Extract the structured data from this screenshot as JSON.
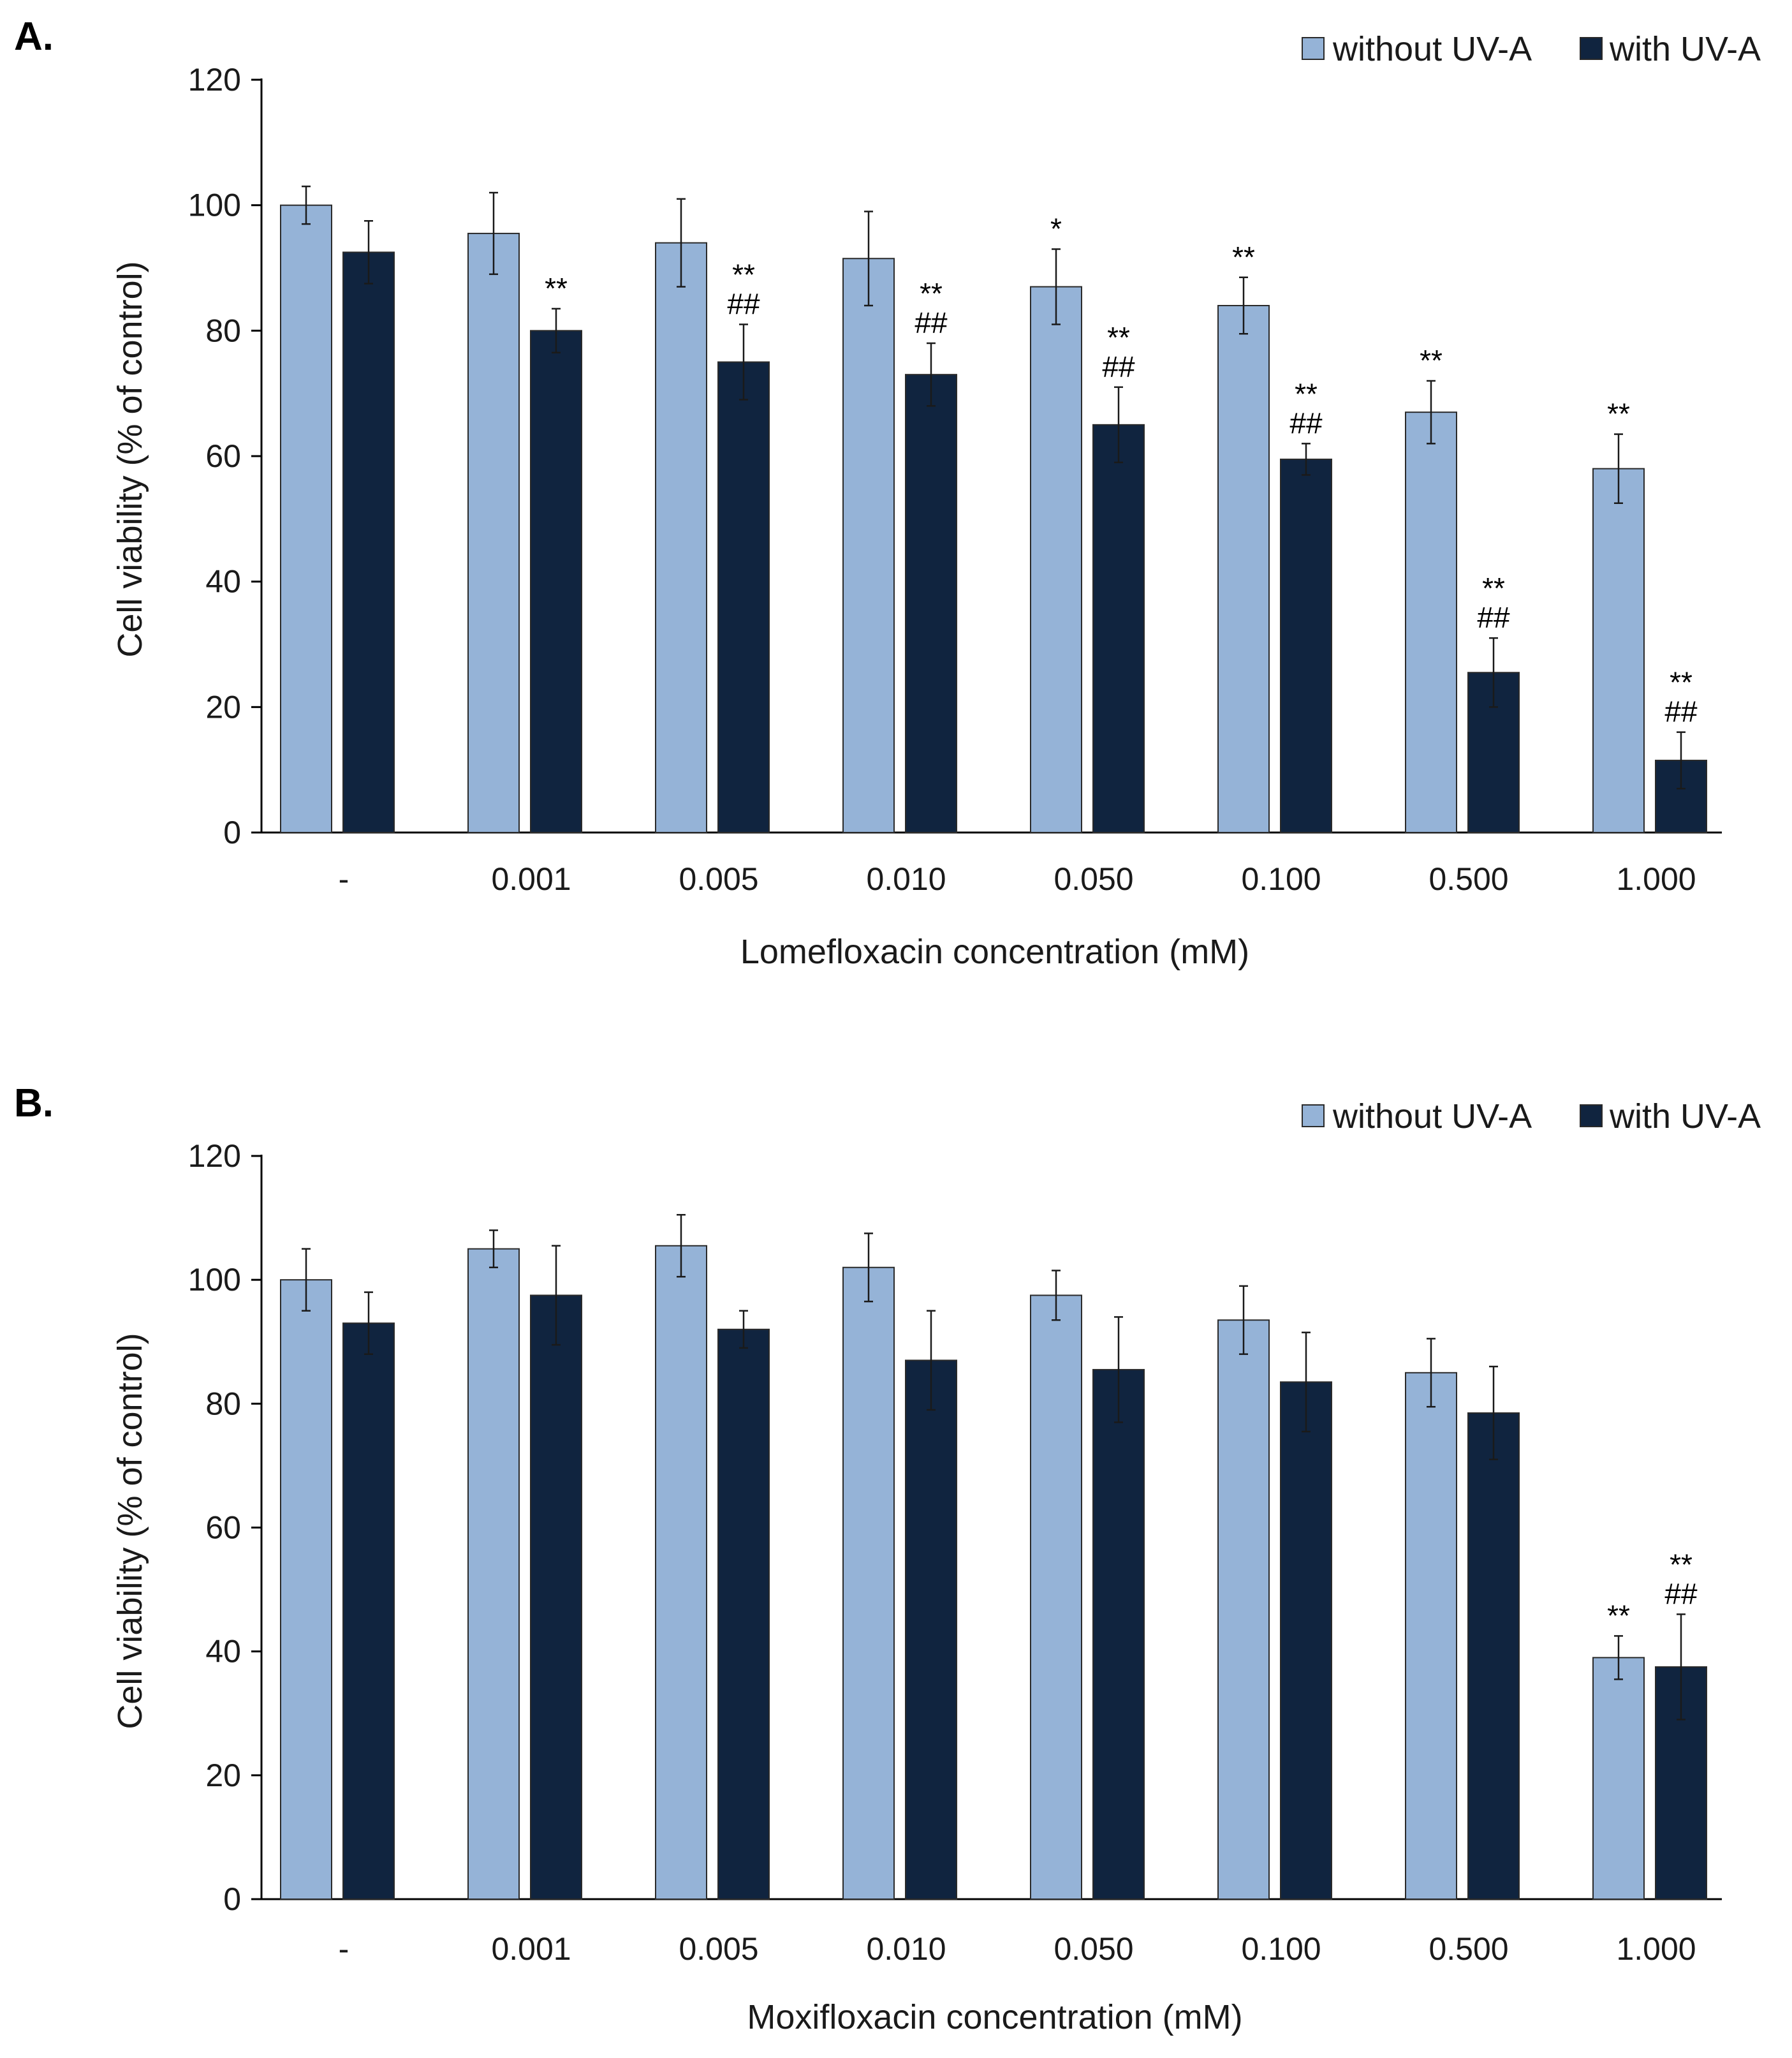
{
  "colors": {
    "without": "#95b3d7",
    "with": "#10243f"
  },
  "chart_data": [
    {
      "type": "bar",
      "panel": "A.",
      "xlabel": "Lomefloxacin concentration (mM)",
      "ylabel": "Cell viability  (% of control)",
      "ylim": [
        0,
        120
      ],
      "yticks": [
        "0",
        "20",
        "40",
        "60",
        "80",
        "100",
        "120"
      ],
      "ytick_values": [
        0,
        20,
        40,
        60,
        80,
        100,
        120
      ],
      "categories": [
        "-",
        "0.001",
        "0.005",
        "0.010",
        "0.050",
        "0.100",
        "0.500",
        "1.000"
      ],
      "legend": [
        "without UV-A",
        "with UV-A"
      ],
      "series": [
        {
          "name": "without UV-A",
          "values": [
            100,
            95.5,
            94,
            91.5,
            87,
            84,
            67,
            58
          ],
          "errors": [
            3,
            6.5,
            7,
            7.5,
            6,
            4.5,
            5,
            5.5
          ],
          "annotations": [
            "",
            "",
            "",
            "",
            "*",
            "**",
            "**",
            "**"
          ]
        },
        {
          "name": "with UV-A",
          "values": [
            92.5,
            80,
            75,
            73,
            65,
            59.5,
            25.5,
            11.5
          ],
          "errors": [
            5,
            3.5,
            6,
            5,
            6,
            2.5,
            5.5,
            4.5
          ],
          "annotations": [
            "",
            "**",
            "**\n##",
            "**\n##",
            "**\n##",
            "**\n##",
            "**\n##",
            "**\n##"
          ]
        }
      ]
    },
    {
      "type": "bar",
      "panel": "B.",
      "xlabel": "Moxifloxacin concentration (mM)",
      "ylabel": "Cell viability  (% of control)",
      "ylim": [
        0,
        120
      ],
      "yticks": [
        "0",
        "20",
        "40",
        "60",
        "80",
        "100",
        "120"
      ],
      "ytick_values": [
        0,
        20,
        40,
        60,
        80,
        100,
        120
      ],
      "categories": [
        "-",
        "0.001",
        "0.005",
        "0.010",
        "0.050",
        "0.100",
        "0.500",
        "1.000"
      ],
      "legend": [
        "without UV-A",
        "with UV-A"
      ],
      "series": [
        {
          "name": "without UV-A",
          "values": [
            100,
            105,
            105.5,
            102,
            97.5,
            93.5,
            85,
            39
          ],
          "errors": [
            5,
            3,
            5,
            5.5,
            4,
            5.5,
            5.5,
            3.5
          ],
          "annotations": [
            "",
            "",
            "",
            "",
            "",
            "",
            "",
            "**"
          ]
        },
        {
          "name": "with UV-A",
          "values": [
            93,
            97.5,
            92,
            87,
            85.5,
            83.5,
            78.5,
            37.5
          ],
          "errors": [
            5,
            8,
            3,
            8,
            8.5,
            8,
            7.5,
            8.5
          ],
          "annotations": [
            "",
            "",
            "",
            "",
            "",
            "",
            "",
            "**\n##"
          ]
        }
      ]
    }
  ]
}
